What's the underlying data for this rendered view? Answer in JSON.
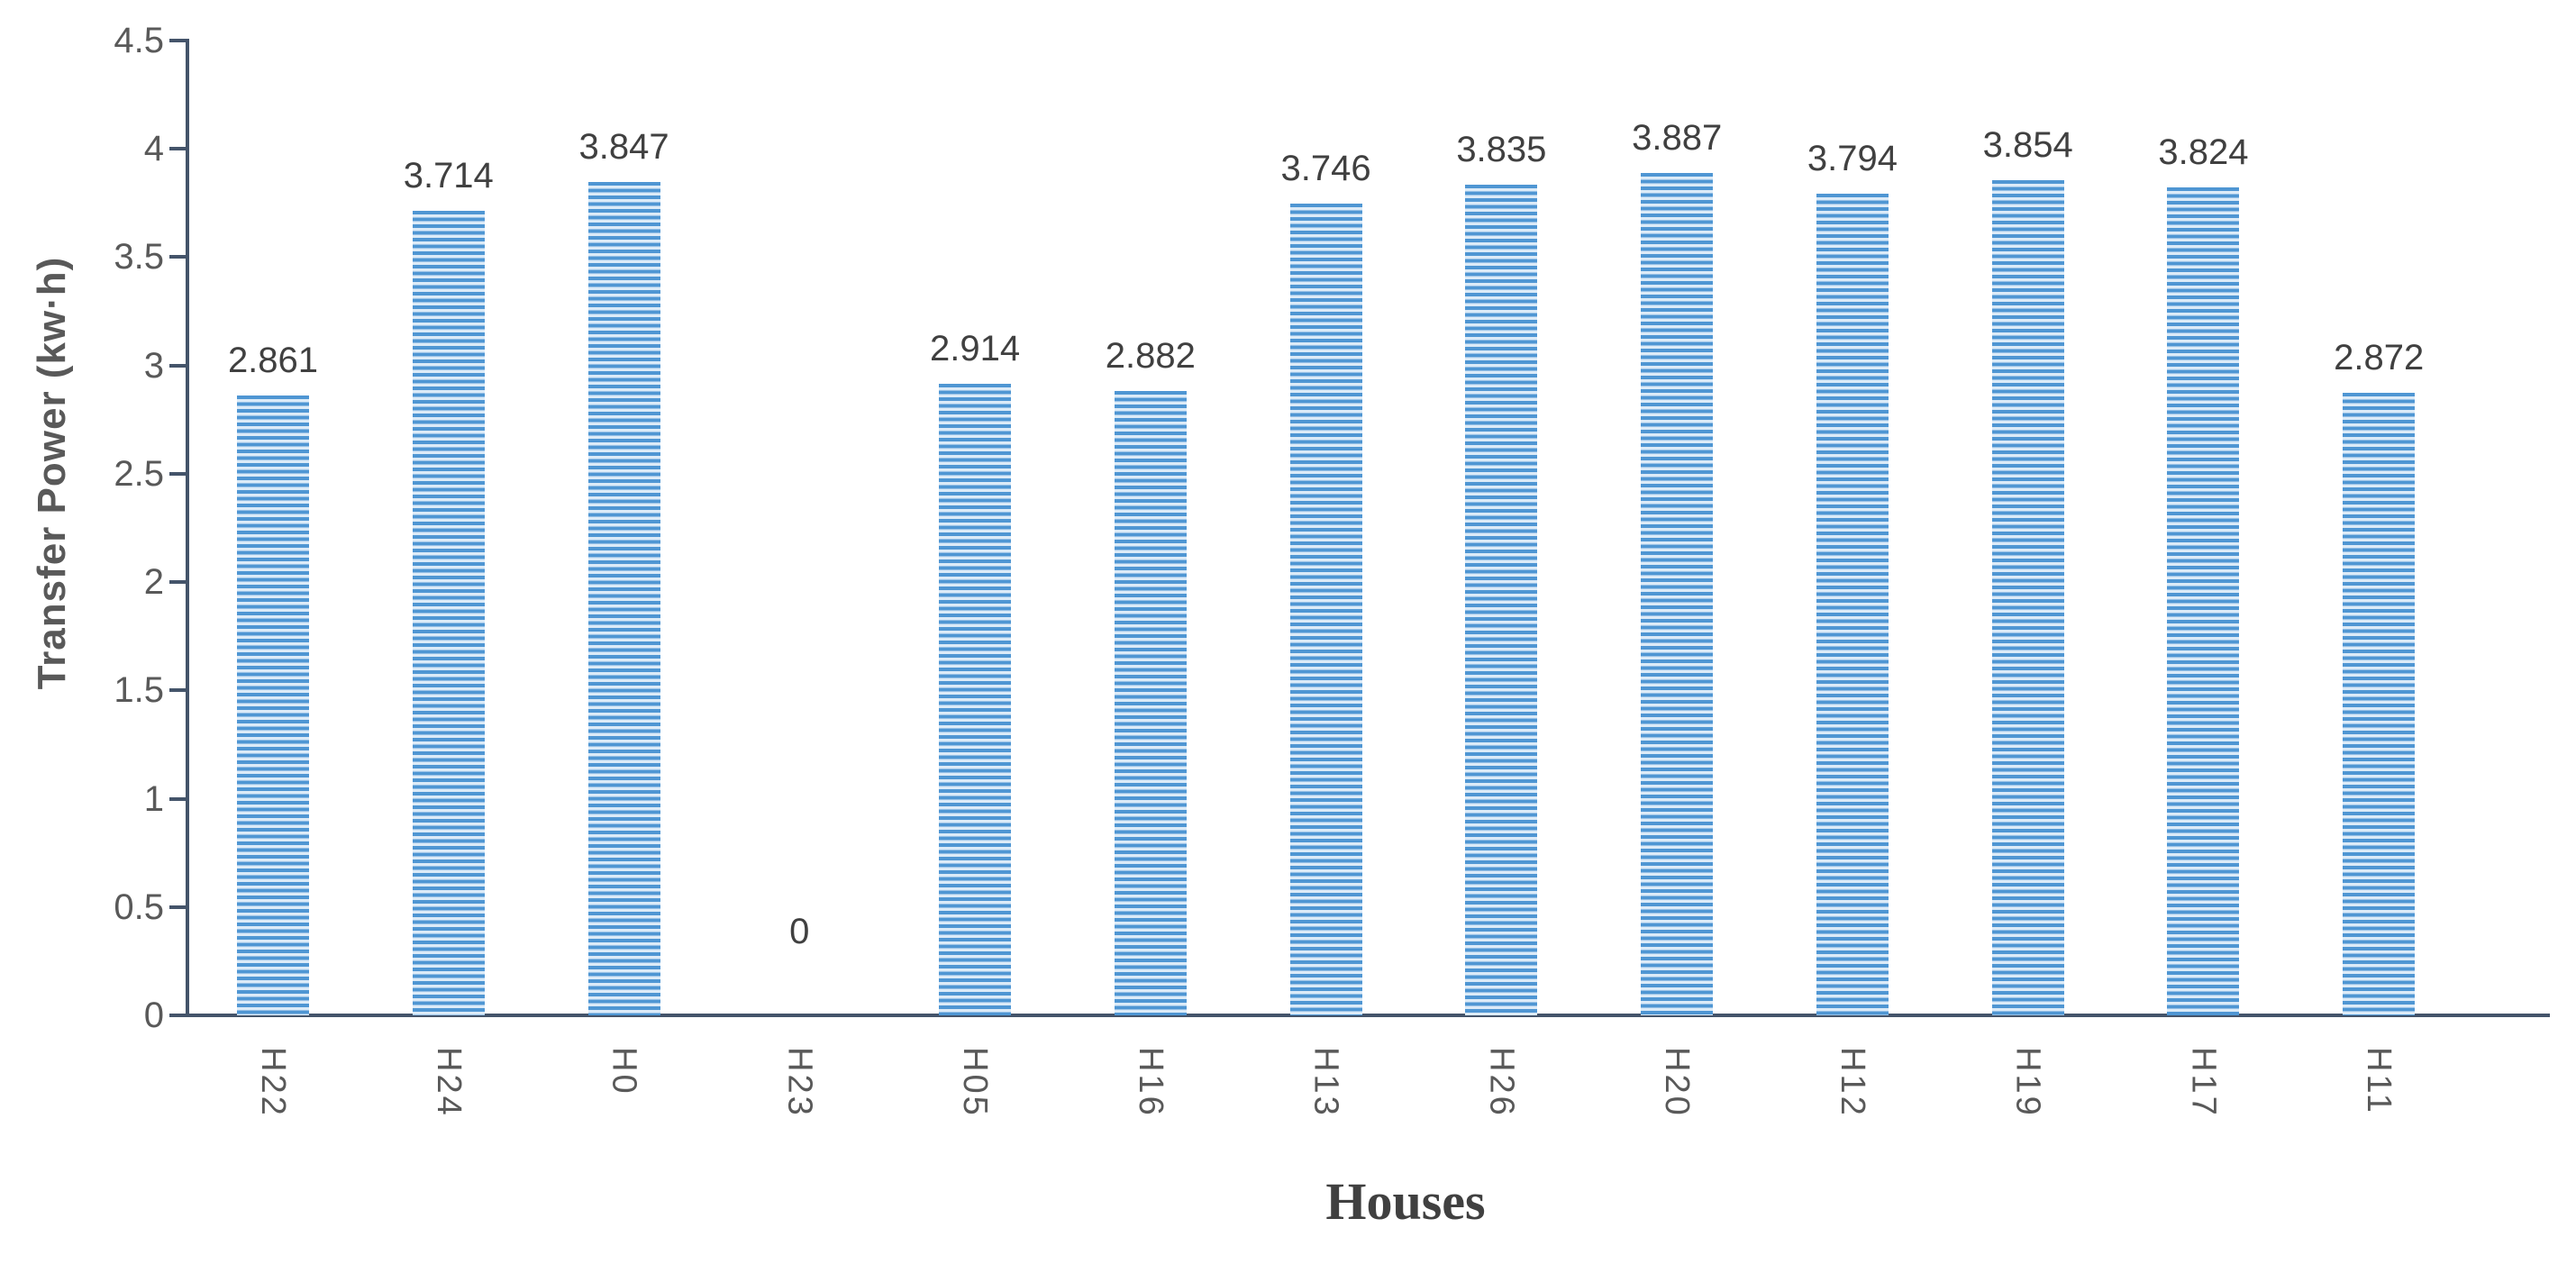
{
  "chart_data": {
    "type": "bar",
    "title": "",
    "xlabel": "Houses",
    "ylabel": "Transfer Power (kw·h)",
    "categories": [
      "H22",
      "H24",
      "H0",
      "H23",
      "H05",
      "H16",
      "H13",
      "H26",
      "H20",
      "H12",
      "H19",
      "H17",
      "H11"
    ],
    "values": [
      2.861,
      3.714,
      3.847,
      0,
      2.914,
      2.882,
      3.746,
      3.835,
      3.887,
      3.794,
      3.854,
      3.824,
      2.872
    ],
    "data_labels": [
      "2.861",
      "3.714",
      "3.847",
      "0",
      "2.914",
      "2.882",
      "3.746",
      "3.835",
      "3.887",
      "3.794",
      "3.854",
      "3.824",
      "2.872"
    ],
    "ylim": [
      0,
      4.5
    ],
    "ytick_step": 0.5,
    "yticks": [
      "0",
      "0.5",
      "1",
      "1.5",
      "2",
      "2.5",
      "3",
      "3.5",
      "4",
      "4.5"
    ],
    "grid": false,
    "legend": "none",
    "bar_pattern": "horizontal-stripes",
    "x_tick_rotation": "90deg-read-down",
    "colors": {
      "bar_stripe_dark": "#4f96d3",
      "bar_stripe_light": "#dcebf8",
      "axis_line": "#44546a",
      "tick_label": "#595959",
      "data_label": "#404040",
      "y_axis_title": "#595959",
      "x_axis_title": "#404040"
    }
  }
}
